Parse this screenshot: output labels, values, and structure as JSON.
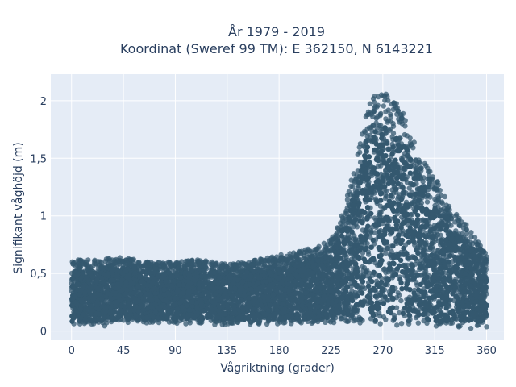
{
  "chart_data": {
    "type": "scatter",
    "title_line1": "År 1979 - 2019",
    "title_line2": "Koordinat (Sweref 99 TM): E 362150, N 6143221",
    "xlabel": "Vågriktning (grader)",
    "ylabel": "Signifikant våghöjd (m)",
    "xlim": [
      -18,
      375
    ],
    "ylim": [
      -0.08,
      2.23
    ],
    "x_ticks": [
      0,
      45,
      90,
      135,
      180,
      225,
      270,
      315,
      360
    ],
    "y_ticks": [
      0,
      0.5,
      1,
      1.5,
      2
    ],
    "y_tick_labels": [
      "0",
      "0,5",
      "1",
      "1,5",
      "2"
    ],
    "grid": true,
    "plot_background": "#e5ecf6",
    "marker_color": "#34586f",
    "envelope": {
      "direction_deg": [
        0,
        20,
        45,
        70,
        90,
        110,
        135,
        160,
        180,
        200,
        215,
        225,
        235,
        245,
        255,
        262,
        270,
        280,
        290,
        300,
        315,
        330,
        345,
        360
      ],
      "min_height_m": [
        0.04,
        0.04,
        0.05,
        0.06,
        0.06,
        0.06,
        0.05,
        0.06,
        0.06,
        0.06,
        0.07,
        0.07,
        0.07,
        0.06,
        0.06,
        0.05,
        0.05,
        0.05,
        0.04,
        0.04,
        0.03,
        0.03,
        0.02,
        0.03
      ],
      "max_height_m": [
        0.62,
        0.62,
        0.64,
        0.6,
        0.6,
        0.62,
        0.58,
        0.62,
        0.66,
        0.7,
        0.74,
        0.8,
        1.02,
        1.4,
        1.85,
        2.08,
        2.1,
        2.0,
        1.9,
        1.55,
        1.35,
        1.05,
        0.9,
        0.66
      ]
    },
    "n_points_estimate": 4500
  }
}
